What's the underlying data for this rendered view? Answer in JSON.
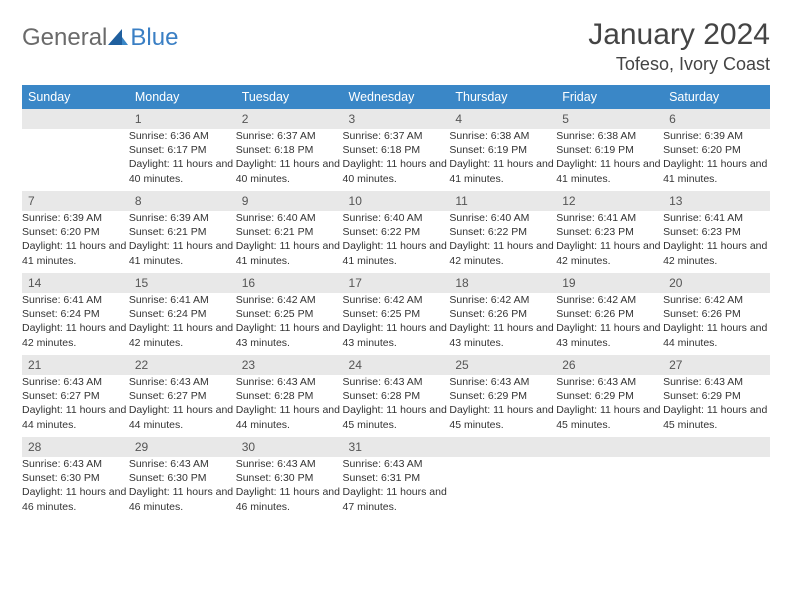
{
  "brand": {
    "part1": "General",
    "part2": "Blue"
  },
  "title": "January 2024",
  "location": "Tofeso, Ivory Coast",
  "colors": {
    "header_bg": "#3a87c7",
    "header_text": "#ffffff",
    "daynum_bg": "#e8e8e8",
    "week_border": "#3a87c7",
    "logo_gray": "#6a6a6a",
    "logo_blue": "#3a7fc4"
  },
  "day_headers": [
    "Sunday",
    "Monday",
    "Tuesday",
    "Wednesday",
    "Thursday",
    "Friday",
    "Saturday"
  ],
  "weeks": [
    [
      {
        "n": "",
        "sunrise": "",
        "sunset": "",
        "daylight": ""
      },
      {
        "n": "1",
        "sunrise": "Sunrise: 6:36 AM",
        "sunset": "Sunset: 6:17 PM",
        "daylight": "Daylight: 11 hours and 40 minutes."
      },
      {
        "n": "2",
        "sunrise": "Sunrise: 6:37 AM",
        "sunset": "Sunset: 6:18 PM",
        "daylight": "Daylight: 11 hours and 40 minutes."
      },
      {
        "n": "3",
        "sunrise": "Sunrise: 6:37 AM",
        "sunset": "Sunset: 6:18 PM",
        "daylight": "Daylight: 11 hours and 40 minutes."
      },
      {
        "n": "4",
        "sunrise": "Sunrise: 6:38 AM",
        "sunset": "Sunset: 6:19 PM",
        "daylight": "Daylight: 11 hours and 41 minutes."
      },
      {
        "n": "5",
        "sunrise": "Sunrise: 6:38 AM",
        "sunset": "Sunset: 6:19 PM",
        "daylight": "Daylight: 11 hours and 41 minutes."
      },
      {
        "n": "6",
        "sunrise": "Sunrise: 6:39 AM",
        "sunset": "Sunset: 6:20 PM",
        "daylight": "Daylight: 11 hours and 41 minutes."
      }
    ],
    [
      {
        "n": "7",
        "sunrise": "Sunrise: 6:39 AM",
        "sunset": "Sunset: 6:20 PM",
        "daylight": "Daylight: 11 hours and 41 minutes."
      },
      {
        "n": "8",
        "sunrise": "Sunrise: 6:39 AM",
        "sunset": "Sunset: 6:21 PM",
        "daylight": "Daylight: 11 hours and 41 minutes."
      },
      {
        "n": "9",
        "sunrise": "Sunrise: 6:40 AM",
        "sunset": "Sunset: 6:21 PM",
        "daylight": "Daylight: 11 hours and 41 minutes."
      },
      {
        "n": "10",
        "sunrise": "Sunrise: 6:40 AM",
        "sunset": "Sunset: 6:22 PM",
        "daylight": "Daylight: 11 hours and 41 minutes."
      },
      {
        "n": "11",
        "sunrise": "Sunrise: 6:40 AM",
        "sunset": "Sunset: 6:22 PM",
        "daylight": "Daylight: 11 hours and 42 minutes."
      },
      {
        "n": "12",
        "sunrise": "Sunrise: 6:41 AM",
        "sunset": "Sunset: 6:23 PM",
        "daylight": "Daylight: 11 hours and 42 minutes."
      },
      {
        "n": "13",
        "sunrise": "Sunrise: 6:41 AM",
        "sunset": "Sunset: 6:23 PM",
        "daylight": "Daylight: 11 hours and 42 minutes."
      }
    ],
    [
      {
        "n": "14",
        "sunrise": "Sunrise: 6:41 AM",
        "sunset": "Sunset: 6:24 PM",
        "daylight": "Daylight: 11 hours and 42 minutes."
      },
      {
        "n": "15",
        "sunrise": "Sunrise: 6:41 AM",
        "sunset": "Sunset: 6:24 PM",
        "daylight": "Daylight: 11 hours and 42 minutes."
      },
      {
        "n": "16",
        "sunrise": "Sunrise: 6:42 AM",
        "sunset": "Sunset: 6:25 PM",
        "daylight": "Daylight: 11 hours and 43 minutes."
      },
      {
        "n": "17",
        "sunrise": "Sunrise: 6:42 AM",
        "sunset": "Sunset: 6:25 PM",
        "daylight": "Daylight: 11 hours and 43 minutes."
      },
      {
        "n": "18",
        "sunrise": "Sunrise: 6:42 AM",
        "sunset": "Sunset: 6:26 PM",
        "daylight": "Daylight: 11 hours and 43 minutes."
      },
      {
        "n": "19",
        "sunrise": "Sunrise: 6:42 AM",
        "sunset": "Sunset: 6:26 PM",
        "daylight": "Daylight: 11 hours and 43 minutes."
      },
      {
        "n": "20",
        "sunrise": "Sunrise: 6:42 AM",
        "sunset": "Sunset: 6:26 PM",
        "daylight": "Daylight: 11 hours and 44 minutes."
      }
    ],
    [
      {
        "n": "21",
        "sunrise": "Sunrise: 6:43 AM",
        "sunset": "Sunset: 6:27 PM",
        "daylight": "Daylight: 11 hours and 44 minutes."
      },
      {
        "n": "22",
        "sunrise": "Sunrise: 6:43 AM",
        "sunset": "Sunset: 6:27 PM",
        "daylight": "Daylight: 11 hours and 44 minutes."
      },
      {
        "n": "23",
        "sunrise": "Sunrise: 6:43 AM",
        "sunset": "Sunset: 6:28 PM",
        "daylight": "Daylight: 11 hours and 44 minutes."
      },
      {
        "n": "24",
        "sunrise": "Sunrise: 6:43 AM",
        "sunset": "Sunset: 6:28 PM",
        "daylight": "Daylight: 11 hours and 45 minutes."
      },
      {
        "n": "25",
        "sunrise": "Sunrise: 6:43 AM",
        "sunset": "Sunset: 6:29 PM",
        "daylight": "Daylight: 11 hours and 45 minutes."
      },
      {
        "n": "26",
        "sunrise": "Sunrise: 6:43 AM",
        "sunset": "Sunset: 6:29 PM",
        "daylight": "Daylight: 11 hours and 45 minutes."
      },
      {
        "n": "27",
        "sunrise": "Sunrise: 6:43 AM",
        "sunset": "Sunset: 6:29 PM",
        "daylight": "Daylight: 11 hours and 45 minutes."
      }
    ],
    [
      {
        "n": "28",
        "sunrise": "Sunrise: 6:43 AM",
        "sunset": "Sunset: 6:30 PM",
        "daylight": "Daylight: 11 hours and 46 minutes."
      },
      {
        "n": "29",
        "sunrise": "Sunrise: 6:43 AM",
        "sunset": "Sunset: 6:30 PM",
        "daylight": "Daylight: 11 hours and 46 minutes."
      },
      {
        "n": "30",
        "sunrise": "Sunrise: 6:43 AM",
        "sunset": "Sunset: 6:30 PM",
        "daylight": "Daylight: 11 hours and 46 minutes."
      },
      {
        "n": "31",
        "sunrise": "Sunrise: 6:43 AM",
        "sunset": "Sunset: 6:31 PM",
        "daylight": "Daylight: 11 hours and 47 minutes."
      },
      {
        "n": "",
        "sunrise": "",
        "sunset": "",
        "daylight": ""
      },
      {
        "n": "",
        "sunrise": "",
        "sunset": "",
        "daylight": ""
      },
      {
        "n": "",
        "sunrise": "",
        "sunset": "",
        "daylight": ""
      }
    ]
  ]
}
